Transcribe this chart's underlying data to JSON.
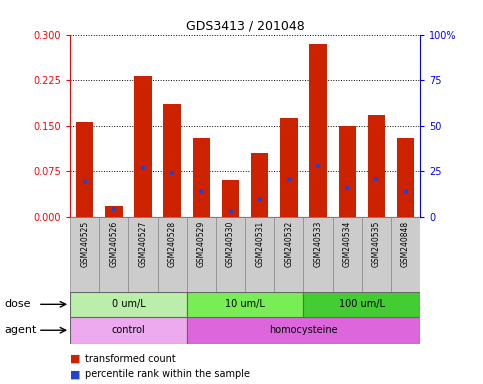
{
  "title": "GDS3413 / 201048",
  "samples": [
    "GSM240525",
    "GSM240526",
    "GSM240527",
    "GSM240528",
    "GSM240529",
    "GSM240530",
    "GSM240531",
    "GSM240532",
    "GSM240533",
    "GSM240534",
    "GSM240535",
    "GSM240848"
  ],
  "red_values": [
    0.157,
    0.018,
    0.232,
    0.185,
    0.13,
    0.06,
    0.105,
    0.163,
    0.285,
    0.15,
    0.168,
    0.13
  ],
  "blue_values": [
    0.057,
    0.013,
    0.08,
    0.073,
    0.043,
    0.01,
    0.03,
    0.063,
    0.083,
    0.048,
    0.063,
    0.043
  ],
  "ylim_left": [
    0,
    0.3
  ],
  "ylim_right": [
    0,
    100
  ],
  "yticks_left": [
    0,
    0.075,
    0.15,
    0.225,
    0.3
  ],
  "yticks_right": [
    0,
    25,
    50,
    75,
    100
  ],
  "bar_color": "#cc2200",
  "marker_color": "#2244cc",
  "dose_groups": [
    {
      "label": "0 um/L",
      "start": 0,
      "end": 4,
      "color": "#bbeeaa"
    },
    {
      "label": "10 um/L",
      "start": 4,
      "end": 8,
      "color": "#77ee55"
    },
    {
      "label": "100 um/L",
      "start": 8,
      "end": 12,
      "color": "#44cc33"
    }
  ],
  "agent_groups": [
    {
      "label": "control",
      "start": 0,
      "end": 4,
      "color": "#eeaaee"
    },
    {
      "label": "homocysteine",
      "start": 4,
      "end": 12,
      "color": "#dd66dd"
    }
  ],
  "dose_label": "dose",
  "agent_label": "agent",
  "legend_red": "transformed count",
  "legend_blue": "percentile rank within the sample"
}
